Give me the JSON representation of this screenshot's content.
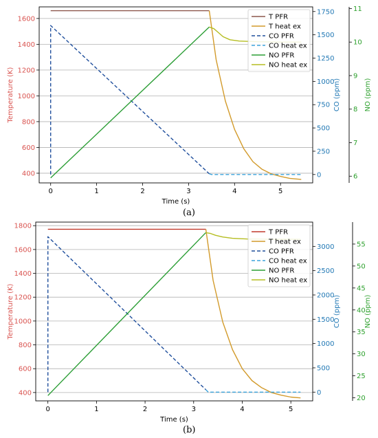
{
  "panels": [
    {
      "label": "(a)",
      "chart_data": {
        "type": "line",
        "xlabel": "Time (s)",
        "xlim": [
          -0.25,
          5.7
        ],
        "x_ticks": [
          0,
          1,
          2,
          3,
          4,
          5
        ],
        "ylabel_left": "Temperature (K)",
        "ylim_left": [
          325,
          1690
        ],
        "yticks_left": [
          400,
          600,
          800,
          1000,
          1200,
          1400,
          1600
        ],
        "ylabel_co": "CO (ppm)",
        "ylim_co": [
          -90,
          1800
        ],
        "yticks_co": [
          0,
          250,
          500,
          750,
          1000,
          1250,
          1500,
          1750
        ],
        "ylabel_no": "NO (ppm)",
        "ylim_no": [
          5.8,
          11.05
        ],
        "yticks_no": [
          6,
          7,
          8,
          9,
          10,
          11
        ],
        "grid": "y",
        "legend_position": "top-right",
        "series": [
          {
            "name": "T PFR",
            "axis": "left",
            "color": "#8c564b",
            "dash": "solid",
            "x": [
              0,
              3.45
            ],
            "y": [
              1660,
              1660
            ]
          },
          {
            "name": "T heat ex",
            "axis": "left",
            "color": "#d29a2a",
            "dash": "solid",
            "x": [
              3.45,
              3.6,
              3.8,
              4.0,
              4.2,
              4.4,
              4.6,
              4.8,
              5.0,
              5.2,
              5.45
            ],
            "y": [
              1660,
              1280,
              960,
              740,
              590,
              490,
              430,
              395,
              375,
              360,
              352
            ]
          },
          {
            "name": "CO PFR",
            "axis": "co",
            "color": "#1f4e9c",
            "dash": "dashed",
            "x": [
              0,
              0,
              3.45
            ],
            "y": [
              0,
              1600,
              8
            ]
          },
          {
            "name": "CO heat ex",
            "axis": "co",
            "color": "#3ba4dc",
            "dash": "dashed",
            "x": [
              3.45,
              3.5,
              5.45
            ],
            "y": [
              8,
              0,
              0
            ]
          },
          {
            "name": "NO PFR",
            "axis": "no",
            "color": "#2a9d34",
            "dash": "solid",
            "x": [
              0,
              3.45
            ],
            "y": [
              5.95,
              10.45
            ]
          },
          {
            "name": "NO heat ex",
            "axis": "no",
            "color": "#b5bd20",
            "dash": "solid",
            "x": [
              3.45,
              3.55,
              3.65,
              3.75,
              3.9,
              4.1,
              4.5,
              5.0,
              5.45
            ],
            "y": [
              10.45,
              10.4,
              10.28,
              10.16,
              10.07,
              10.03,
              10.01,
              10.0,
              10.0
            ]
          }
        ]
      }
    },
    {
      "label": "(b)",
      "chart_data": {
        "type": "line",
        "xlabel": "Time (s)",
        "xlim": [
          -0.25,
          5.45
        ],
        "x_ticks": [
          0,
          1,
          2,
          3,
          4,
          5
        ],
        "ylabel_left": "Temperature (K)",
        "ylim_left": [
          330,
          1830
        ],
        "yticks_left": [
          400,
          600,
          800,
          1000,
          1200,
          1400,
          1600,
          1800
        ],
        "ylabel_co": "CO (ppm)",
        "ylim_co": [
          -180,
          3500
        ],
        "yticks_co": [
          0,
          500,
          1000,
          1500,
          2000,
          2500,
          3000
        ],
        "ylabel_no": "NO (ppm)",
        "ylim_no": [
          19.3,
          60
        ],
        "yticks_no": [
          20,
          25,
          30,
          35,
          40,
          45,
          50,
          55
        ],
        "grid": "y",
        "legend_position": "top-right",
        "series": [
          {
            "name": "T PFR",
            "axis": "left",
            "color": "#c0392b",
            "dash": "solid",
            "x": [
              0,
              3.25
            ],
            "y": [
              1770,
              1770
            ]
          },
          {
            "name": "T heat ex",
            "axis": "left",
            "color": "#d29a2a",
            "dash": "solid",
            "x": [
              3.25,
              3.4,
              3.6,
              3.8,
              4.0,
              4.2,
              4.4,
              4.6,
              4.8,
              5.0,
              5.2
            ],
            "y": [
              1770,
              1340,
              990,
              760,
              600,
              500,
              440,
              400,
              378,
              362,
              355
            ]
          },
          {
            "name": "CO PFR",
            "axis": "co",
            "color": "#1f4e9c",
            "dash": "dashed",
            "x": [
              0,
              0,
              3.25
            ],
            "y": [
              0,
              3200,
              50
            ]
          },
          {
            "name": "CO heat ex",
            "axis": "co",
            "color": "#3ba4dc",
            "dash": "dashed",
            "x": [
              3.25,
              3.3,
              5.2
            ],
            "y": [
              50,
              0,
              0
            ]
          },
          {
            "name": "NO PFR",
            "axis": "no",
            "color": "#2a9d34",
            "dash": "solid",
            "x": [
              0,
              3.25
            ],
            "y": [
              20.5,
              57.6
            ]
          },
          {
            "name": "NO heat ex",
            "axis": "no",
            "color": "#b5bd20",
            "dash": "solid",
            "x": [
              3.25,
              3.35,
              3.45,
              3.6,
              3.8,
              4.1,
              4.5,
              5.0,
              5.2
            ],
            "y": [
              57.6,
              57.4,
              57.0,
              56.6,
              56.3,
              56.15,
              56.1,
              56.1,
              56.1
            ]
          }
        ]
      }
    }
  ],
  "colors": {
    "temp_axis": "#d9534f",
    "co_axis": "#1f77b4",
    "no_axis": "#2ca02c",
    "grid": "#b0b0b0"
  }
}
